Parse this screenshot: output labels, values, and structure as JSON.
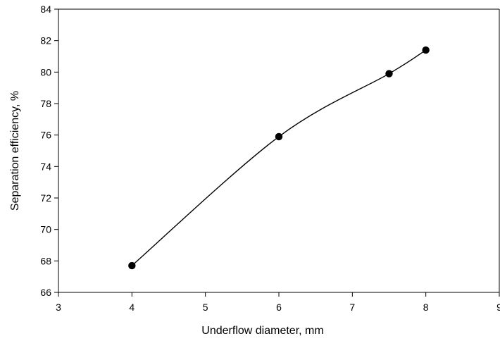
{
  "chart_data": {
    "type": "line",
    "title": "",
    "xlabel": "Underflow diameter, mm",
    "ylabel": "Separation efficiency, %",
    "xlim": [
      3,
      9
    ],
    "ylim": [
      66,
      84
    ],
    "xticks": [
      "3",
      "4",
      "5",
      "6",
      "7",
      "8",
      "9"
    ],
    "yticks": [
      "66",
      "68",
      "70",
      "72",
      "74",
      "76",
      "78",
      "80",
      "82",
      "84"
    ],
    "grid": false,
    "legend": "none",
    "smooth": true,
    "series": [
      {
        "x": [
          4,
          6,
          7.5,
          8
        ],
        "y": [
          67.7,
          75.9,
          79.9,
          81.4
        ],
        "color": "#000000",
        "marker": "filled-circle"
      }
    ]
  }
}
